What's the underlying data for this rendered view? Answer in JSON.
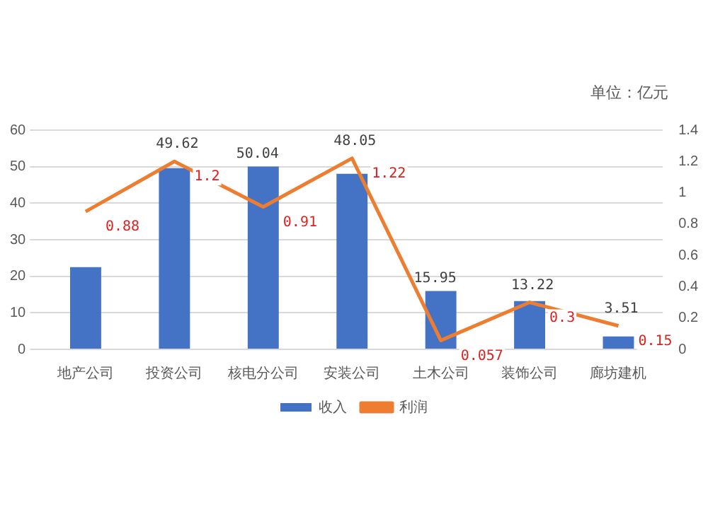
{
  "chart_data": {
    "type": "bar",
    "categories": [
      "地产公司",
      "投资公司",
      "核电分公司",
      "安装公司",
      "土木公司",
      "装饰公司",
      "廊坊建机"
    ],
    "series": [
      {
        "name": "收入",
        "type": "bar",
        "color": "#4472c4",
        "values": [
          22.5,
          49.62,
          50.04,
          48.05,
          15.95,
          13.22,
          3.51
        ],
        "value_labels": [
          null,
          "49.62",
          "50.04",
          "48.05",
          "15.95",
          "13.22",
          "3.51"
        ]
      },
      {
        "name": "利润",
        "type": "line",
        "axis": "y2",
        "color": "#ed7d31",
        "values": [
          0.88,
          1.2,
          0.91,
          1.22,
          0.057,
          0.3,
          0.15
        ],
        "value_labels": [
          "0.88",
          "1.2",
          "0.91",
          "1.22",
          "0.057",
          "0.3",
          "0.15"
        ]
      }
    ],
    "ylim": [
      0,
      60
    ],
    "yticks": [
      0,
      10,
      20,
      30,
      40,
      50,
      60
    ],
    "y2lim": [
      0,
      1.4
    ],
    "y2ticks": [
      0,
      0.2,
      0.4,
      0.6,
      0.8,
      1,
      1.2,
      1.4
    ],
    "grid": "y",
    "legend": "bottom",
    "marker": "none",
    "annotations": [
      "单位：亿元"
    ]
  }
}
